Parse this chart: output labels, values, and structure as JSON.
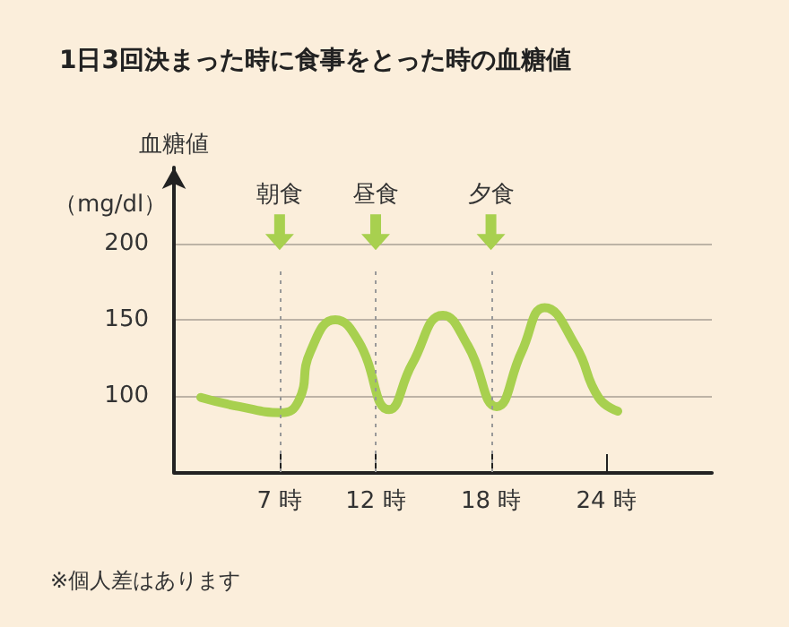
{
  "chart_data": {
    "type": "line",
    "title": "1日3回決まった時に食事をとった時の血糖値",
    "ylabel": "血糖値",
    "annotations": [
      "（mg/dl）",
      "※個人差はあります"
    ],
    "x": [
      2.9,
      4.9,
      7.07,
      8.0,
      8.6,
      9.9,
      11.1,
      12.7,
      13.9,
      15.5,
      16.8,
      18.3,
      19.6,
      20.8,
      22.4,
      23.6,
      24.6
    ],
    "values": [
      99,
      93,
      89,
      97,
      129,
      150,
      136,
      91,
      121,
      153,
      133,
      93,
      129,
      158,
      133,
      99,
      90
    ],
    "color": "#a8d04f",
    "xlim": [
      1.5,
      29.5
    ],
    "xticks": [
      {
        "value": 7,
        "label": "7 時"
      },
      {
        "value": 12,
        "label": "12 時"
      },
      {
        "value": 18,
        "label": "18 時"
      },
      {
        "value": 24,
        "label": "24 時"
      }
    ],
    "ylim": [
      50,
      250
    ],
    "yticks": [
      100,
      150,
      200
    ],
    "grid": "y",
    "marker": "none",
    "line_style": "solid",
    "ref_lines": [
      {
        "axis": "x",
        "value": 7,
        "label": "朝食",
        "color": "#999999",
        "line_style": "dotted"
      },
      {
        "axis": "x",
        "value": 12,
        "label": "昼食",
        "color": "#999999",
        "line_style": "dotted"
      },
      {
        "axis": "x",
        "value": 18,
        "label": "夕食",
        "color": "#999999",
        "line_style": "dotted"
      }
    ]
  }
}
